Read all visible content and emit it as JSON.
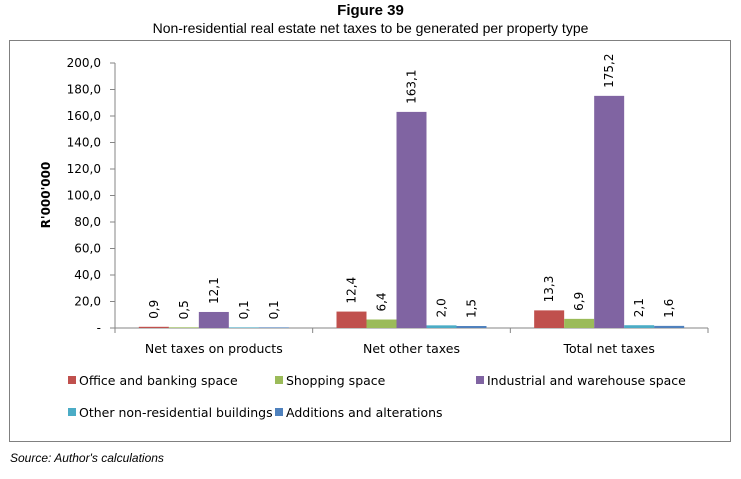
{
  "figure": {
    "title": "Figure 39",
    "subtitle": "Non-residential real estate net taxes to be generated per property type",
    "source": "Source: Author's calculations"
  },
  "chart_data": {
    "type": "bar",
    "title": "Non-residential real estate net taxes to be generated per property type",
    "xlabel": "",
    "ylabel": "R'000'000",
    "ylim": [
      0,
      200
    ],
    "yticks": [
      0,
      20,
      40,
      60,
      80,
      100,
      120,
      140,
      160,
      180,
      200
    ],
    "ytick_labels": [
      "-",
      "20,0",
      "40,0",
      "60,0",
      "80,0",
      "100,0",
      "120,0",
      "140,0",
      "160,0",
      "180,0",
      "200,0"
    ],
    "grid": false,
    "legend_position": "bottom",
    "categories": [
      "Net taxes on products",
      "Net other taxes",
      "Total net taxes"
    ],
    "series": [
      {
        "name": "Office and banking space",
        "color": "#C0504D",
        "values": [
          0.9,
          12.4,
          13.3
        ],
        "labels": [
          "0,9",
          "12,4",
          "13,3"
        ]
      },
      {
        "name": "Shopping space",
        "color": "#9BBB59",
        "values": [
          0.5,
          6.4,
          6.9
        ],
        "labels": [
          "0,5",
          "6,4",
          "6,9"
        ]
      },
      {
        "name": "Industrial and warehouse space",
        "color": "#8064A2",
        "values": [
          12.1,
          163.1,
          175.2
        ],
        "labels": [
          "12,1",
          "163,1",
          "175,2"
        ]
      },
      {
        "name": "Other non-residential buildings",
        "color": "#4BACC6",
        "values": [
          0.1,
          2.0,
          2.1
        ],
        "labels": [
          "0,1",
          "2,0",
          "2,1"
        ]
      },
      {
        "name": "Additions and alterations",
        "color": "#4F81BD",
        "values": [
          0.1,
          1.5,
          1.6
        ],
        "labels": [
          "0,1",
          "1,5",
          "1,6"
        ]
      }
    ]
  }
}
